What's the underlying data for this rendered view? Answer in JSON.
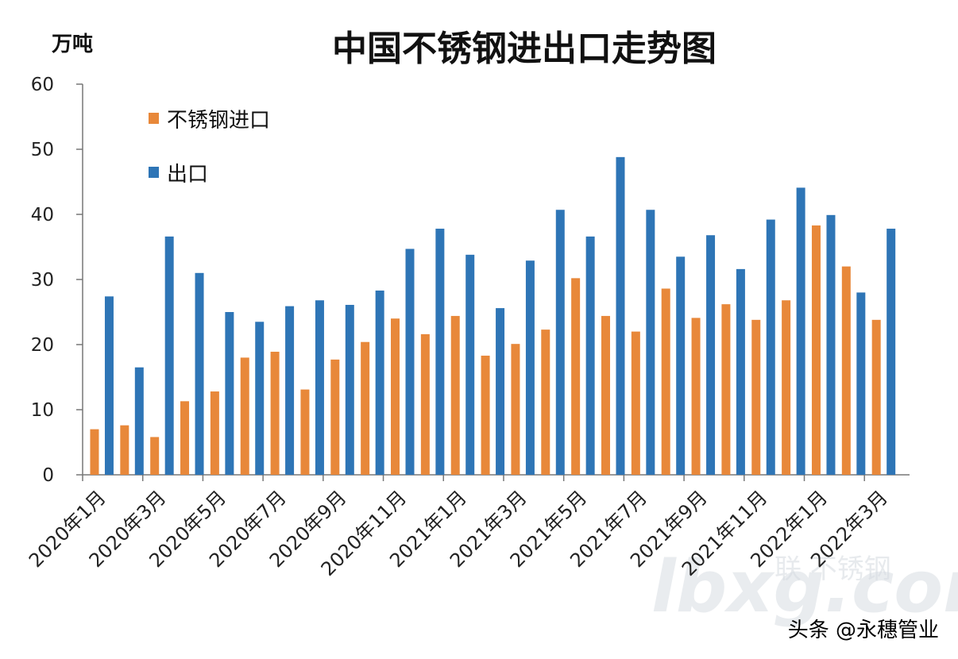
{
  "colors": {
    "import": "#e8883a",
    "export": "#2e75b6"
  },
  "texts": {
    "watermark": "头条 @永穗管业",
    "watermark_logo_text": "联 不锈钢",
    "watermark_logo_domain": "lbxg.com"
  },
  "chart_data": {
    "type": "bar",
    "title": "中国不锈钢进出口走势图",
    "ylabel": "万吨",
    "xlabel": "",
    "ylim": [
      0,
      60
    ],
    "yticks": [
      0,
      10,
      20,
      30,
      40,
      50,
      60
    ],
    "legend_position": "top-left",
    "grid": false,
    "categories": [
      "2020年1月",
      "2020年2月",
      "2020年3月",
      "2020年4月",
      "2020年5月",
      "2020年6月",
      "2020年7月",
      "2020年8月",
      "2020年9月",
      "2020年10月",
      "2020年11月",
      "2020年12月",
      "2021年1月",
      "2021年2月",
      "2021年3月",
      "2021年4月",
      "2021年5月",
      "2021年6月",
      "2021年7月",
      "2021年8月",
      "2021年9月",
      "2021年10月",
      "2021年11月",
      "2021年12月",
      "2022年1月",
      "2022年2月",
      "2022年3月"
    ],
    "x_tick_labels": [
      "2020年1月",
      "2020年3月",
      "2020年5月",
      "2020年7月",
      "2020年9月",
      "2020年11月",
      "2021年1月",
      "2021年3月",
      "2021年5月",
      "2021年7月",
      "2021年9月",
      "2021年11月",
      "2022年1月",
      "2022年3月"
    ],
    "series": [
      {
        "name": "不锈钢进口",
        "values": [
          7.0,
          7.6,
          5.8,
          11.3,
          12.8,
          18.0,
          18.9,
          13.1,
          17.7,
          20.4,
          24.0,
          21.6,
          24.4,
          18.3,
          20.1,
          22.3,
          30.2,
          24.4,
          22.0,
          28.6,
          24.1,
          26.2,
          23.8,
          26.8,
          38.3,
          32.0,
          23.8
        ]
      },
      {
        "name": "出口",
        "values": [
          27.4,
          16.5,
          36.6,
          31.0,
          25.0,
          23.5,
          25.9,
          26.8,
          26.1,
          28.3,
          34.7,
          37.8,
          33.8,
          25.6,
          32.9,
          40.7,
          36.6,
          48.8,
          40.7,
          33.5,
          36.8,
          31.6,
          39.2,
          44.1,
          39.9,
          28.0,
          37.8
        ]
      }
    ]
  }
}
